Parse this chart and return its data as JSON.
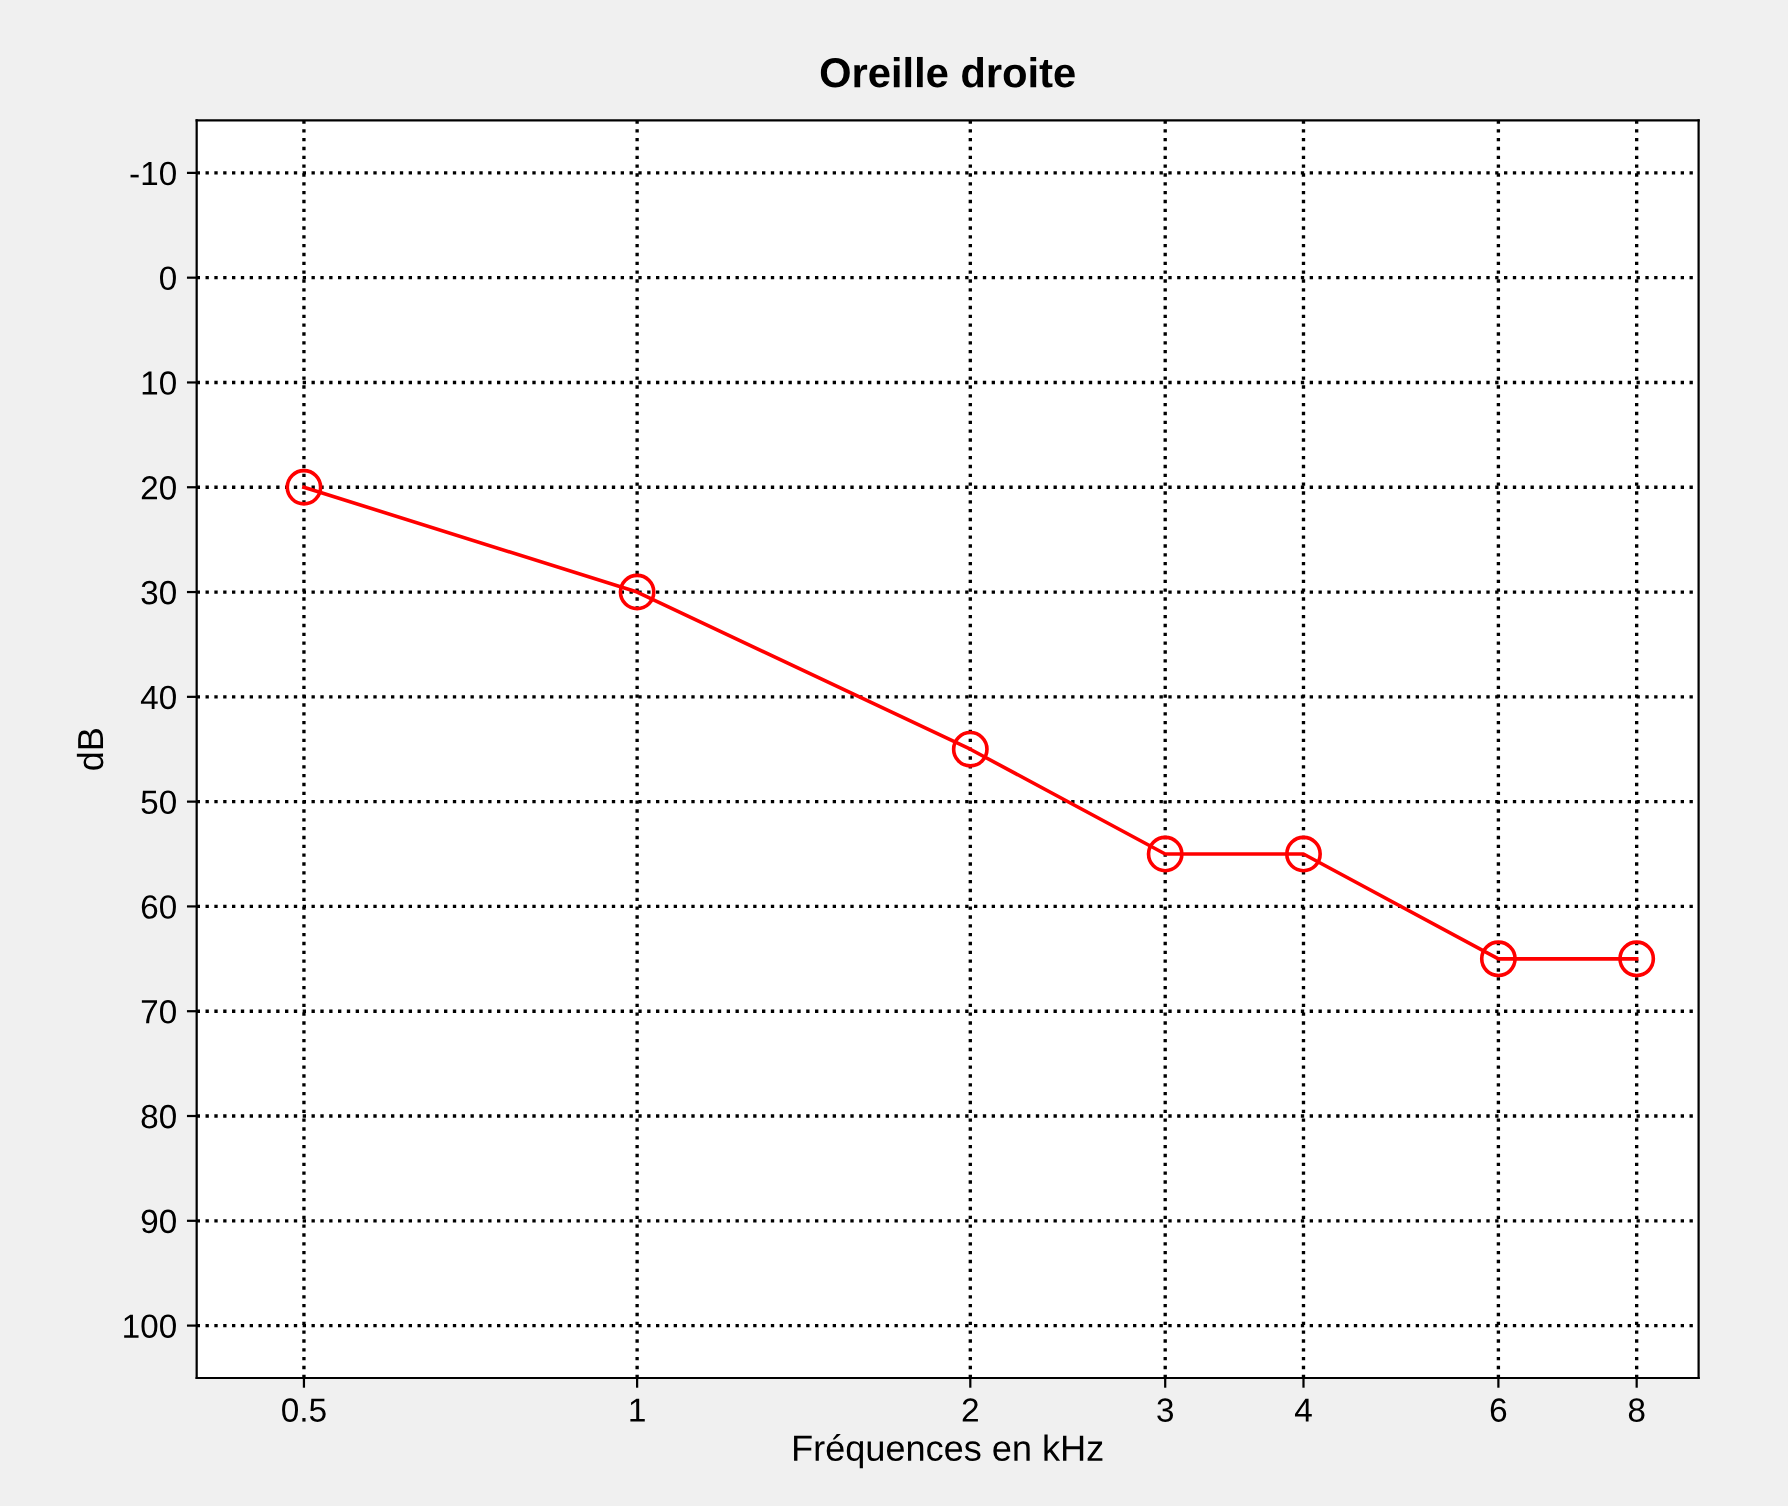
{
  "chart_data": {
    "type": "line",
    "title": "Oreille droite",
    "xlabel": "Fréquences en kHz",
    "ylabel": "dB",
    "x": [
      0.5,
      1,
      2,
      3,
      4,
      6,
      8
    ],
    "series": [
      {
        "color": "#ff0000",
        "values": [
          20,
          30,
          45,
          55,
          55,
          65,
          65
        ]
      }
    ],
    "log": "x",
    "xlim": [
      0.4,
      9.1
    ],
    "xticks": [
      0.5,
      1,
      2,
      3,
      4,
      6,
      8
    ],
    "ylim": [
      105,
      -15
    ],
    "yticks": [
      -10,
      0,
      10,
      20,
      30,
      40,
      50,
      60,
      70,
      80,
      90,
      100
    ],
    "grid": true,
    "marker": "circle",
    "line_style": "solid"
  }
}
